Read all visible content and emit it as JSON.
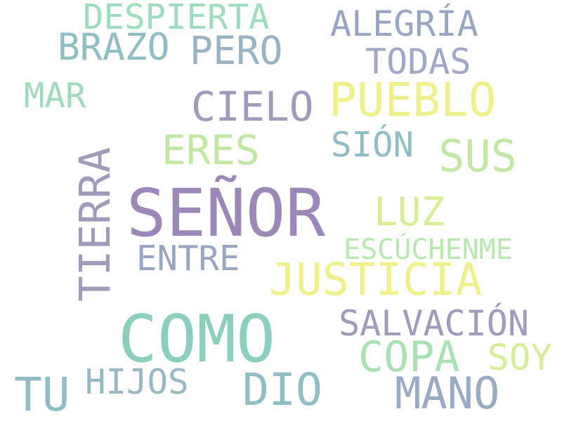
{
  "words": [
    {
      "text": "SEÑOR",
      "color": "#9b88b8"
    },
    {
      "text": "COMO",
      "color": "#8dcfbd"
    },
    {
      "text": "PUEBLO",
      "color": "#eef08a"
    },
    {
      "text": "JUSTICIA",
      "color": "#eef08a"
    },
    {
      "text": "TIERRA",
      "color": "#a09bbb"
    },
    {
      "text": "MANO",
      "color": "#98aac4"
    },
    {
      "text": "DIO",
      "color": "#8fbec5"
    },
    {
      "text": "TU",
      "color": "#8fbec5"
    },
    {
      "text": "SUS",
      "color": "#c3e8a5"
    },
    {
      "text": "COPA",
      "color": "#a8e2b2"
    },
    {
      "text": "CIELO",
      "color": "#a09bbb"
    },
    {
      "text": "ERES",
      "color": "#c3e8a5"
    },
    {
      "text": "PERO",
      "color": "#98b3c4"
    },
    {
      "text": "LUZ",
      "color": "#d6ee96"
    },
    {
      "text": "DESPIERTA",
      "color": "#9ddcbd"
    },
    {
      "text": "BRAZO",
      "color": "#8fbec5"
    },
    {
      "text": "ALEGRÍA",
      "color": "#98a6c4"
    },
    {
      "text": "TODAS",
      "color": "#a0a8c8"
    },
    {
      "text": "SALVACIÓN",
      "color": "#a09bbb"
    },
    {
      "text": "ENTRE",
      "color": "#98a6c4"
    },
    {
      "text": "HIJOS",
      "color": "#98b9c4"
    },
    {
      "text": "SOY",
      "color": "#d6ee96"
    },
    {
      "text": "MAR",
      "color": "#9ddcbd"
    },
    {
      "text": "SIÓN",
      "color": "#8fbec5"
    },
    {
      "text": "ESCÚCHENME",
      "color": "#b8e8b0"
    }
  ]
}
